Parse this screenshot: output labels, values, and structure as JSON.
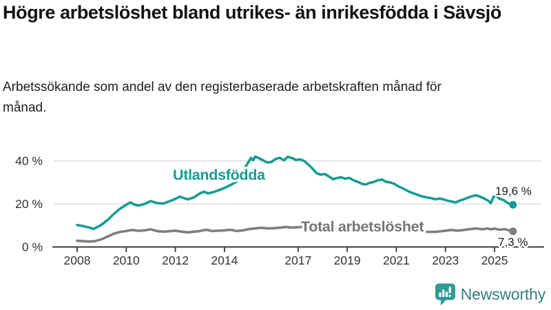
{
  "header": {
    "title": "Högre arbetslöshet bland utrikes- än inrikesfödda i Sävsjö",
    "subtitle": "Arbetssökande som andel av den registerbaserade arbetskraften månad för månad."
  },
  "colors": {
    "accent_teal": "#149c95",
    "series_gray": "#7e7e7e",
    "grid": "#dedede",
    "axis": "#3a3a3a",
    "axis_text": "#333333",
    "value_text": "#1a1a1a",
    "logo_teal": "#2e9c94",
    "logo_text_teal": "#35807b"
  },
  "chart_data": {
    "type": "line",
    "title": "Högre arbetslöshet bland utrikes- än inrikesfödda i Sävsjö",
    "subtitle": "Arbetssökande som andel av den registerbaserade arbetskraften månad för månad.",
    "x_axis": {
      "ticks": [
        2008,
        2010,
        2012,
        2014,
        2017,
        2019,
        2021,
        2023,
        2025
      ],
      "range": [
        2008,
        2025.75
      ],
      "grid": false
    },
    "y_axis": {
      "unit": "%",
      "range": [
        0,
        45
      ],
      "grid": true,
      "ticks": [
        {
          "value": 0,
          "label": "0 %"
        },
        {
          "value": 20,
          "label": "20 %"
        },
        {
          "value": 40,
          "label": "40 %"
        }
      ]
    },
    "series": [
      {
        "name": "Total arbetslöshet",
        "color": "#7e7e7e",
        "label_color": "#757575",
        "end_value": 7.3,
        "end_label": "7,3 %",
        "points": [
          [
            2008.0,
            2.9
          ],
          [
            2008.25,
            2.7
          ],
          [
            2008.5,
            2.5
          ],
          [
            2008.75,
            2.8
          ],
          [
            2009.0,
            3.6
          ],
          [
            2009.25,
            4.9
          ],
          [
            2009.5,
            6.2
          ],
          [
            2009.75,
            7.0
          ],
          [
            2010.0,
            7.4
          ],
          [
            2010.25,
            7.9
          ],
          [
            2010.5,
            7.5
          ],
          [
            2010.75,
            7.7
          ],
          [
            2011.0,
            8.2
          ],
          [
            2011.25,
            7.4
          ],
          [
            2011.5,
            7.1
          ],
          [
            2011.75,
            7.3
          ],
          [
            2012.0,
            7.6
          ],
          [
            2012.25,
            7.1
          ],
          [
            2012.5,
            6.8
          ],
          [
            2012.75,
            7.1
          ],
          [
            2013.0,
            7.4
          ],
          [
            2013.25,
            8.0
          ],
          [
            2013.5,
            7.4
          ],
          [
            2013.75,
            7.6
          ],
          [
            2014.0,
            7.7
          ],
          [
            2014.25,
            8.0
          ],
          [
            2014.5,
            7.4
          ],
          [
            2014.75,
            7.7
          ],
          [
            2015.0,
            8.3
          ],
          [
            2015.25,
            8.6
          ],
          [
            2015.5,
            8.9
          ],
          [
            2015.75,
            8.6
          ],
          [
            2016.0,
            8.7
          ],
          [
            2016.25,
            9.0
          ],
          [
            2016.5,
            9.3
          ],
          [
            2016.75,
            9.0
          ],
          [
            2017.0,
            9.2
          ],
          [
            2017.25,
            9.4
          ],
          [
            2017.5,
            9.1
          ],
          [
            2017.75,
            8.9
          ],
          [
            2018.0,
            8.7
          ],
          [
            2018.5,
            8.4
          ],
          [
            2019.0,
            8.2
          ],
          [
            2019.5,
            7.9
          ],
          [
            2020.0,
            8.3
          ],
          [
            2020.4,
            9.0
          ],
          [
            2020.75,
            8.8
          ],
          [
            2021.0,
            8.5
          ],
          [
            2021.5,
            7.9
          ],
          [
            2022.0,
            7.3
          ],
          [
            2022.3,
            7.0
          ],
          [
            2022.6,
            7.0
          ],
          [
            2022.83,
            7.3
          ],
          [
            2023.0,
            7.6
          ],
          [
            2023.25,
            7.9
          ],
          [
            2023.5,
            7.6
          ],
          [
            2023.75,
            7.9
          ],
          [
            2024.0,
            8.3
          ],
          [
            2024.25,
            8.6
          ],
          [
            2024.5,
            8.2
          ],
          [
            2024.7,
            8.6
          ],
          [
            2024.85,
            8.2
          ],
          [
            2025.0,
            8.5
          ],
          [
            2025.2,
            8.0
          ],
          [
            2025.4,
            8.3
          ],
          [
            2025.6,
            7.7
          ],
          [
            2025.75,
            7.3
          ]
        ]
      },
      {
        "name": "Utlandsfödda",
        "color": "#149c95",
        "label_color": "#149c95",
        "end_value": 19.6,
        "end_label": "19,6 %",
        "points": [
          [
            2008.0,
            10.2
          ],
          [
            2008.25,
            9.7
          ],
          [
            2008.5,
            9.0
          ],
          [
            2008.67,
            8.4
          ],
          [
            2008.83,
            9.3
          ],
          [
            2009.0,
            10.4
          ],
          [
            2009.25,
            12.6
          ],
          [
            2009.5,
            15.4
          ],
          [
            2009.75,
            17.8
          ],
          [
            2010.0,
            19.6
          ],
          [
            2010.17,
            20.7
          ],
          [
            2010.33,
            19.7
          ],
          [
            2010.5,
            19.2
          ],
          [
            2010.75,
            20.0
          ],
          [
            2011.0,
            21.3
          ],
          [
            2011.25,
            20.4
          ],
          [
            2011.5,
            20.2
          ],
          [
            2011.75,
            21.2
          ],
          [
            2012.0,
            22.3
          ],
          [
            2012.17,
            23.4
          ],
          [
            2012.33,
            22.8
          ],
          [
            2012.5,
            22.1
          ],
          [
            2012.75,
            23.0
          ],
          [
            2013.0,
            24.9
          ],
          [
            2013.17,
            25.7
          ],
          [
            2013.33,
            24.9
          ],
          [
            2013.5,
            25.3
          ],
          [
            2013.75,
            26.3
          ],
          [
            2014.0,
            27.4
          ],
          [
            2014.25,
            28.8
          ],
          [
            2014.5,
            30.3
          ],
          [
            2014.67,
            33.2
          ],
          [
            2014.83,
            36.8
          ],
          [
            2015.0,
            39.8
          ],
          [
            2015.08,
            41.4
          ],
          [
            2015.17,
            40.3
          ],
          [
            2015.25,
            42.0
          ],
          [
            2015.42,
            41.2
          ],
          [
            2015.58,
            40.2
          ],
          [
            2015.75,
            39.2
          ],
          [
            2015.92,
            39.5
          ],
          [
            2016.08,
            40.9
          ],
          [
            2016.25,
            41.4
          ],
          [
            2016.42,
            40.3
          ],
          [
            2016.58,
            41.9
          ],
          [
            2016.75,
            41.3
          ],
          [
            2016.92,
            40.4
          ],
          [
            2017.08,
            40.7
          ],
          [
            2017.25,
            39.9
          ],
          [
            2017.42,
            38.2
          ],
          [
            2017.58,
            36.5
          ],
          [
            2017.75,
            34.3
          ],
          [
            2017.92,
            33.6
          ],
          [
            2018.08,
            33.9
          ],
          [
            2018.25,
            32.8
          ],
          [
            2018.42,
            31.5
          ],
          [
            2018.58,
            32.0
          ],
          [
            2018.75,
            32.4
          ],
          [
            2018.92,
            31.7
          ],
          [
            2019.08,
            32.1
          ],
          [
            2019.25,
            31.0
          ],
          [
            2019.42,
            30.3
          ],
          [
            2019.58,
            29.4
          ],
          [
            2019.75,
            29.0
          ],
          [
            2019.92,
            29.8
          ],
          [
            2020.08,
            30.2
          ],
          [
            2020.25,
            31.0
          ],
          [
            2020.42,
            31.3
          ],
          [
            2020.58,
            30.3
          ],
          [
            2020.75,
            30.0
          ],
          [
            2020.92,
            29.3
          ],
          [
            2021.08,
            28.2
          ],
          [
            2021.25,
            27.3
          ],
          [
            2021.42,
            26.3
          ],
          [
            2021.58,
            25.4
          ],
          [
            2021.75,
            24.7
          ],
          [
            2021.92,
            24.0
          ],
          [
            2022.08,
            23.4
          ],
          [
            2022.25,
            23.0
          ],
          [
            2022.42,
            22.7
          ],
          [
            2022.58,
            22.1
          ],
          [
            2022.75,
            22.5
          ],
          [
            2022.92,
            22.1
          ],
          [
            2023.08,
            21.5
          ],
          [
            2023.25,
            21.1
          ],
          [
            2023.42,
            20.7
          ],
          [
            2023.58,
            21.5
          ],
          [
            2023.75,
            22.1
          ],
          [
            2023.92,
            22.9
          ],
          [
            2024.08,
            23.6
          ],
          [
            2024.25,
            24.0
          ],
          [
            2024.42,
            23.3
          ],
          [
            2024.58,
            22.5
          ],
          [
            2024.75,
            21.4
          ],
          [
            2024.85,
            20.4
          ],
          [
            2024.95,
            23.2
          ],
          [
            2025.05,
            24.0
          ],
          [
            2025.2,
            22.4
          ],
          [
            2025.35,
            21.9
          ],
          [
            2025.5,
            20.7
          ],
          [
            2025.6,
            20.1
          ],
          [
            2025.75,
            19.6
          ]
        ]
      }
    ],
    "legend_position": "inline-labels"
  },
  "branding": {
    "logo_text": "Newsworthy",
    "logo_icon": "bar-chart-speech-bubble-icon"
  }
}
